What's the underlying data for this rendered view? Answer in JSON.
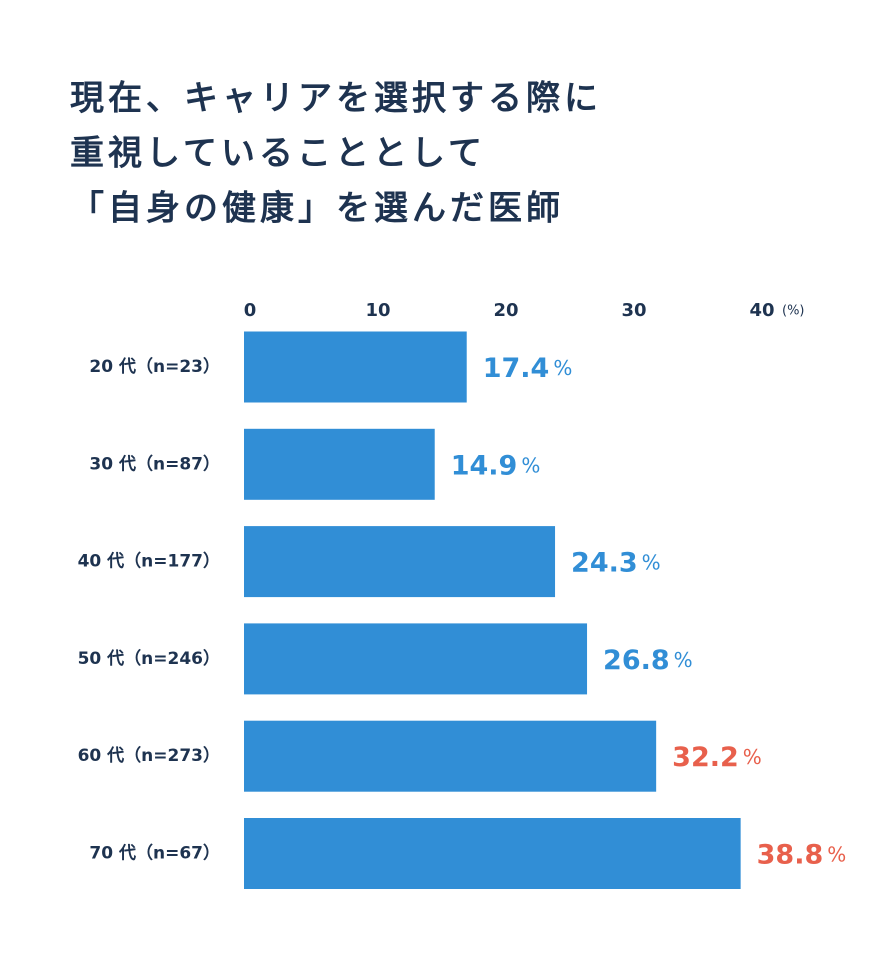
{
  "chart_data": {
    "type": "bar",
    "orientation": "horizontal",
    "title": [
      "現在、キャリアを選択する際に",
      "重視していることとして",
      "「自身の健康」を選んだ医師"
    ],
    "categories": [
      "20 代（n=23）",
      "30 代（n=87）",
      "40 代（n=177）",
      "50 代（n=246）",
      "60 代（n=273）",
      "70 代（n=67）"
    ],
    "values": [
      17.4,
      14.9,
      24.3,
      26.8,
      32.2,
      38.8
    ],
    "unit": "%",
    "axis_unit_label": "(%)",
    "color": "#318ed6",
    "label_colors": [
      "#318ed6",
      "#318ed6",
      "#318ed6",
      "#318ed6",
      "#e8604c",
      "#e8604c"
    ],
    "xlim": [
      0,
      40
    ],
    "xticks": [
      0,
      10,
      20,
      30,
      40
    ],
    "grid": false
  }
}
